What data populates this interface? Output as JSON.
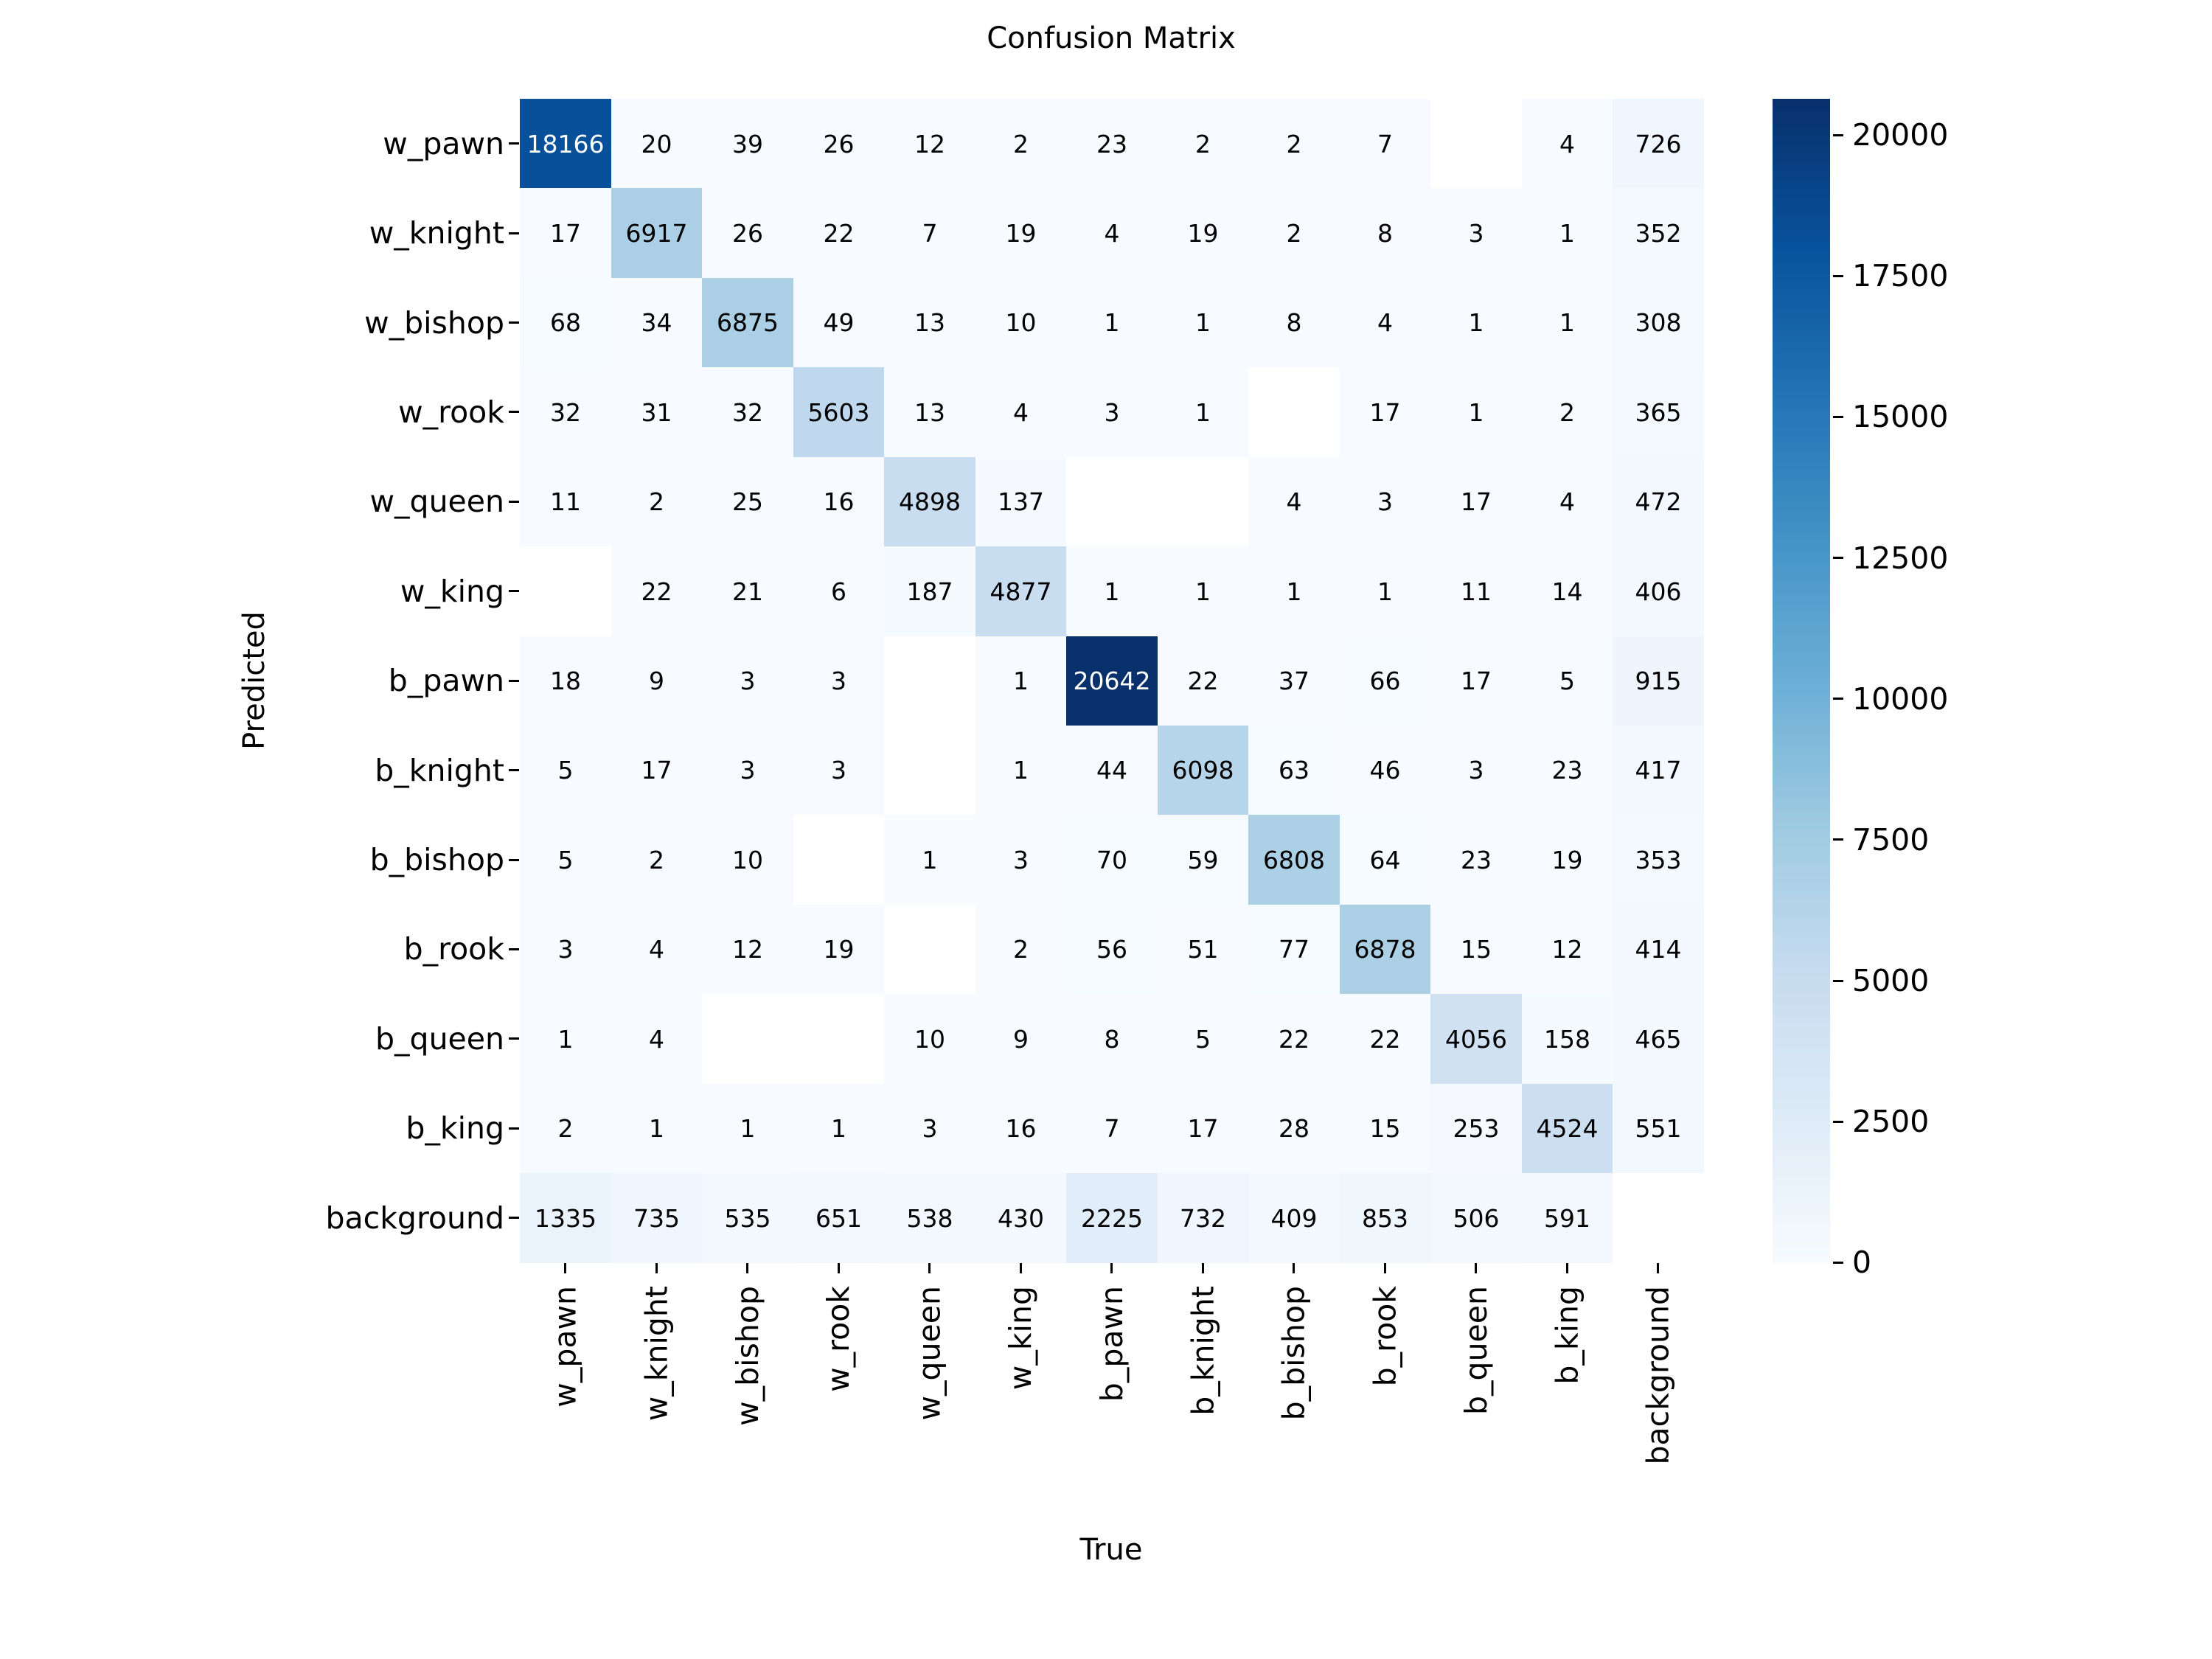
{
  "title": "Confusion Matrix",
  "chart_data": {
    "type": "heatmap",
    "title": "Confusion Matrix",
    "xlabel": "True",
    "ylabel": "Predicted",
    "x_categories": [
      "w_pawn",
      "w_knight",
      "w_bishop",
      "w_rook",
      "w_queen",
      "w_king",
      "b_pawn",
      "b_knight",
      "b_bishop",
      "b_rook",
      "b_queen",
      "b_king",
      "background"
    ],
    "y_categories": [
      "w_pawn",
      "w_knight",
      "w_bishop",
      "w_rook",
      "w_queen",
      "w_king",
      "b_pawn",
      "b_knight",
      "b_bishop",
      "b_rook",
      "b_queen",
      "b_king",
      "background"
    ],
    "matrix": [
      [
        18166,
        20,
        39,
        26,
        12,
        2,
        23,
        2,
        2,
        7,
        null,
        4,
        726
      ],
      [
        17,
        6917,
        26,
        22,
        7,
        19,
        4,
        19,
        2,
        8,
        3,
        1,
        352
      ],
      [
        68,
        34,
        6875,
        49,
        13,
        10,
        1,
        1,
        8,
        4,
        1,
        1,
        308
      ],
      [
        32,
        31,
        32,
        5603,
        13,
        4,
        3,
        1,
        null,
        17,
        1,
        2,
        365
      ],
      [
        11,
        2,
        25,
        16,
        4898,
        137,
        null,
        null,
        4,
        3,
        17,
        4,
        472
      ],
      [
        null,
        22,
        21,
        6,
        187,
        4877,
        1,
        1,
        1,
        1,
        11,
        14,
        406
      ],
      [
        18,
        9,
        3,
        3,
        null,
        1,
        20642,
        22,
        37,
        66,
        17,
        5,
        915
      ],
      [
        5,
        17,
        3,
        3,
        null,
        1,
        44,
        6098,
        63,
        46,
        3,
        23,
        417
      ],
      [
        5,
        2,
        10,
        null,
        1,
        3,
        70,
        59,
        6808,
        64,
        23,
        19,
        353
      ],
      [
        3,
        4,
        12,
        19,
        null,
        2,
        56,
        51,
        77,
        6878,
        15,
        12,
        414
      ],
      [
        1,
        4,
        null,
        null,
        10,
        9,
        8,
        5,
        22,
        22,
        4056,
        158,
        465
      ],
      [
        2,
        1,
        1,
        1,
        3,
        16,
        7,
        17,
        28,
        15,
        253,
        4524,
        551
      ],
      [
        1335,
        735,
        535,
        651,
        538,
        430,
        2225,
        732,
        409,
        853,
        506,
        591,
        null
      ]
    ],
    "vmin": 0,
    "vmax": 20642,
    "colormap": "Blues",
    "colormap_stops": [
      "#f7fbff",
      "#deebf7",
      "#c6dbef",
      "#9ecae1",
      "#6baed6",
      "#4292c6",
      "#2171b5",
      "#08519c",
      "#08306b"
    ],
    "null_cell_color": "#ffffff",
    "annotation_color_light_cells": "#000000",
    "annotation_color_dark_cells": "#ffffff",
    "dark_text_threshold": 0.6,
    "colorbar_ticks": [
      0,
      2500,
      5000,
      7500,
      10000,
      12500,
      15000,
      17500,
      20000
    ],
    "legend_position": "colorbar-right",
    "grid": false
  }
}
